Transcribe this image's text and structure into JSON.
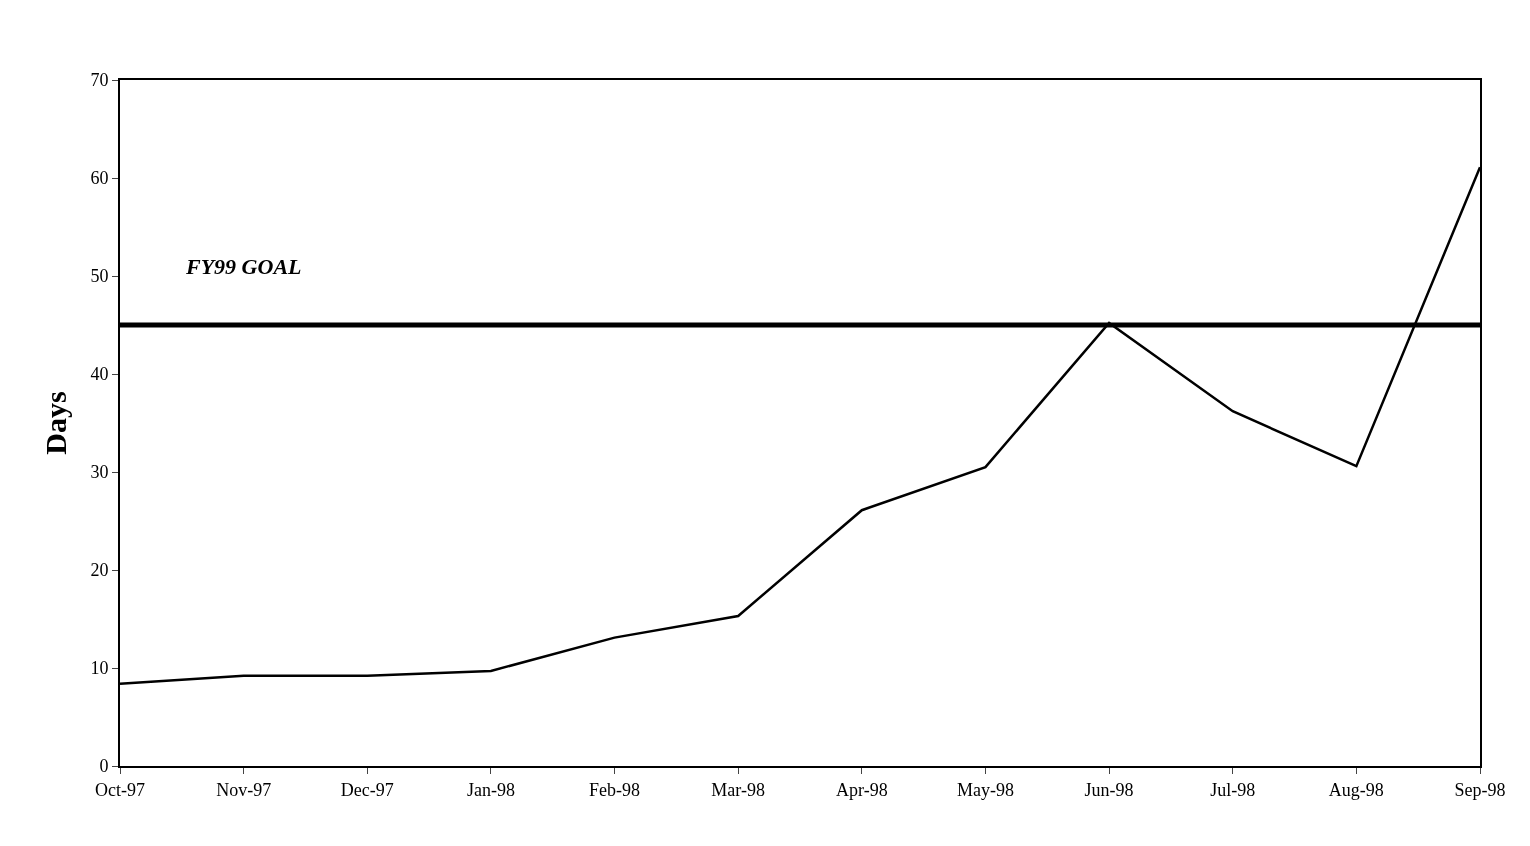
{
  "chart_data": {
    "type": "line",
    "ylabel": "Days",
    "categories": [
      "Oct-97",
      "Nov-97",
      "Dec-97",
      "Jan-98",
      "Feb-98",
      "Mar-98",
      "Apr-98",
      "May-98",
      "Jun-98",
      "Jul-98",
      "Aug-98",
      "Sep-98"
    ],
    "series": [
      {
        "color": "#000000",
        "values": [
          8.4,
          9.2,
          9.2,
          9.7,
          13.1,
          15.3,
          26.1,
          30.5,
          45.2,
          36.2,
          30.6,
          61.1
        ]
      }
    ],
    "ylim": [
      0,
      70
    ],
    "yticks": [
      0,
      10,
      20,
      30,
      40,
      50,
      60,
      70
    ],
    "ref_lines": [
      {
        "axis": "y",
        "value": 45,
        "label": "FY99 GOAL",
        "color": "#000000"
      }
    ],
    "marker": "none",
    "line_style": "solid"
  }
}
